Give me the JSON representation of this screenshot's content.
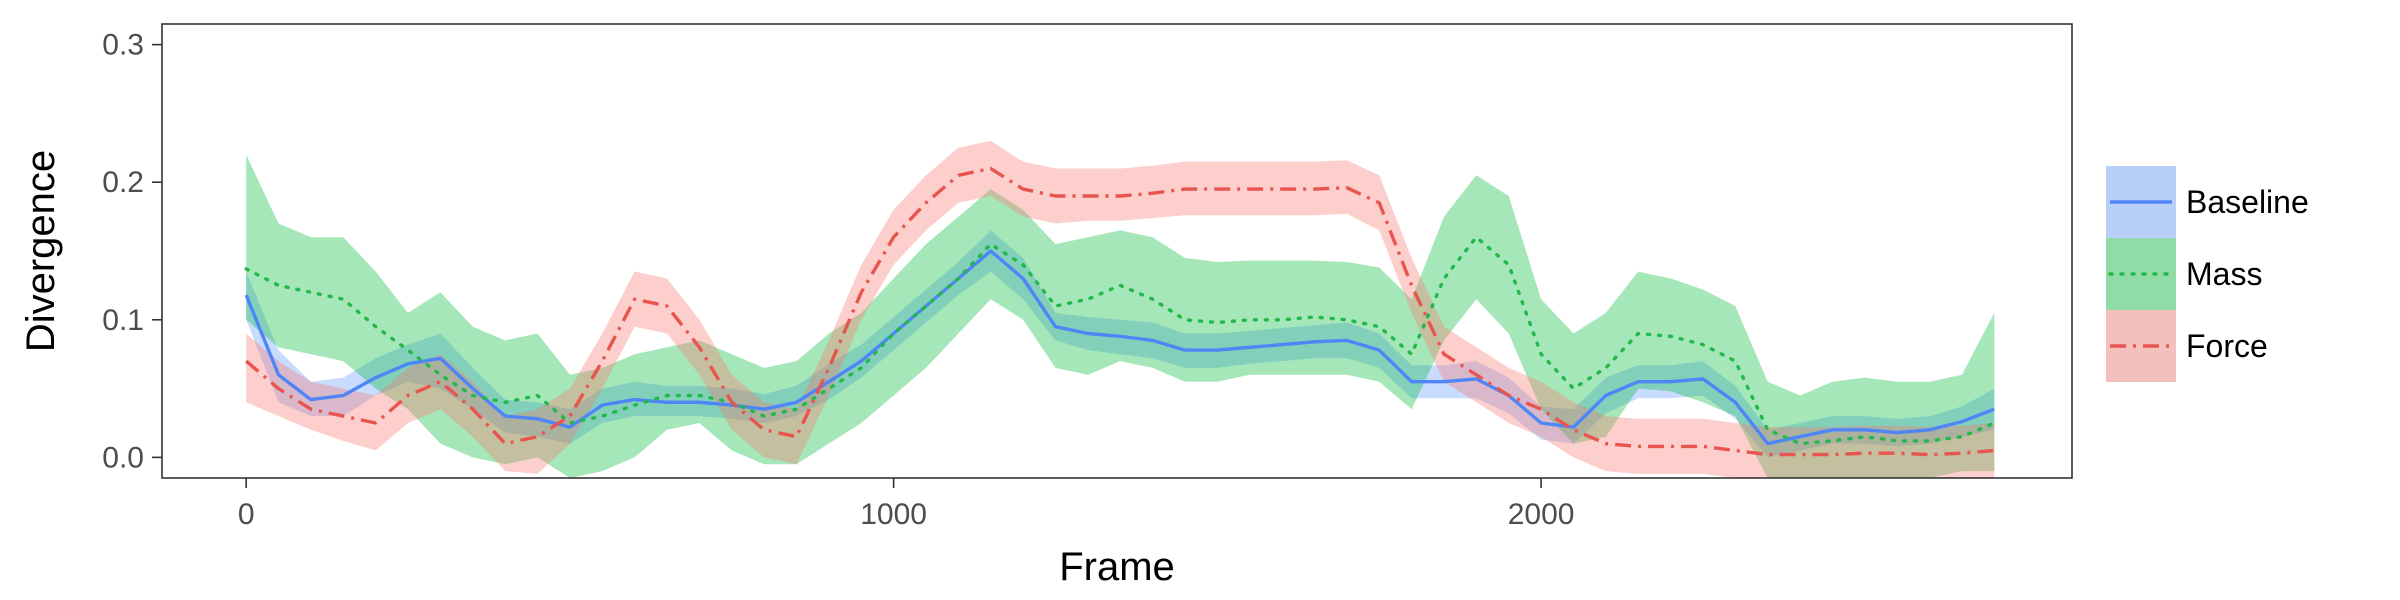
{
  "chart_data": {
    "type": "line",
    "xlabel": "Frame",
    "ylabel": "Divergence",
    "xlim": [
      -130,
      2820
    ],
    "ylim": [
      -0.015,
      0.315
    ],
    "xticks": [
      0,
      1000,
      2000
    ],
    "xtick_labels": [
      "0",
      "1000",
      "2000"
    ],
    "yticks": [
      0.0,
      0.1,
      0.2,
      0.3
    ],
    "ytick_labels": [
      "0.0",
      "0.1",
      "0.2",
      "0.3"
    ],
    "grid": false,
    "legend_position": "right",
    "series": [
      {
        "name": "Baseline",
        "color": "#619CFF",
        "line_color": "#4F86F7",
        "dash": "solid",
        "x": [
          0,
          50,
          100,
          150,
          200,
          250,
          300,
          350,
          400,
          450,
          500,
          550,
          600,
          650,
          700,
          750,
          800,
          850,
          900,
          950,
          1000,
          1050,
          1100,
          1150,
          1200,
          1250,
          1300,
          1350,
          1400,
          1450,
          1500,
          1550,
          1600,
          1650,
          1700,
          1750,
          1800,
          1850,
          1900,
          1950,
          2000,
          2050,
          2100,
          2150,
          2200,
          2250,
          2300,
          2350,
          2400,
          2450,
          2500,
          2550,
          2600,
          2650,
          2700
        ],
        "y": [
          0.118,
          0.06,
          0.042,
          0.045,
          0.058,
          0.068,
          0.072,
          0.05,
          0.03,
          0.028,
          0.022,
          0.038,
          0.042,
          0.04,
          0.04,
          0.038,
          0.035,
          0.04,
          0.055,
          0.07,
          0.09,
          0.11,
          0.13,
          0.15,
          0.13,
          0.095,
          0.09,
          0.088,
          0.085,
          0.078,
          0.078,
          0.08,
          0.082,
          0.084,
          0.085,
          0.078,
          0.055,
          0.055,
          0.057,
          0.045,
          0.025,
          0.022,
          0.045,
          0.055,
          0.055,
          0.057,
          0.04,
          0.01,
          0.015,
          0.02,
          0.02,
          0.018,
          0.02,
          0.026,
          0.035
        ],
        "lower": [
          0.1,
          0.04,
          0.03,
          0.03,
          0.045,
          0.055,
          0.05,
          0.035,
          0.018,
          0.015,
          0.01,
          0.025,
          0.03,
          0.03,
          0.03,
          0.028,
          0.025,
          0.03,
          0.042,
          0.058,
          0.078,
          0.098,
          0.118,
          0.135,
          0.115,
          0.085,
          0.078,
          0.075,
          0.072,
          0.065,
          0.065,
          0.068,
          0.07,
          0.072,
          0.072,
          0.065,
          0.043,
          0.043,
          0.043,
          0.032,
          0.013,
          0.01,
          0.032,
          0.043,
          0.043,
          0.045,
          0.028,
          0.0,
          0.005,
          0.01,
          0.01,
          0.008,
          0.01,
          0.015,
          0.02
        ],
        "upper": [
          0.135,
          0.078,
          0.055,
          0.058,
          0.072,
          0.082,
          0.09,
          0.065,
          0.042,
          0.04,
          0.035,
          0.05,
          0.055,
          0.052,
          0.052,
          0.05,
          0.046,
          0.052,
          0.068,
          0.082,
          0.102,
          0.122,
          0.142,
          0.165,
          0.145,
          0.105,
          0.102,
          0.1,
          0.098,
          0.09,
          0.09,
          0.092,
          0.094,
          0.096,
          0.098,
          0.09,
          0.067,
          0.067,
          0.07,
          0.058,
          0.037,
          0.035,
          0.058,
          0.067,
          0.067,
          0.07,
          0.052,
          0.02,
          0.025,
          0.03,
          0.03,
          0.028,
          0.03,
          0.037,
          0.05
        ]
      },
      {
        "name": "Mass",
        "color": "#00BA38",
        "line_color": "#22B84A",
        "dash": "dotted",
        "x": [
          0,
          50,
          100,
          150,
          200,
          250,
          300,
          350,
          400,
          450,
          500,
          550,
          600,
          650,
          700,
          750,
          800,
          850,
          900,
          950,
          1000,
          1050,
          1100,
          1150,
          1200,
          1250,
          1300,
          1350,
          1400,
          1450,
          1500,
          1550,
          1600,
          1650,
          1700,
          1750,
          1800,
          1850,
          1900,
          1950,
          2000,
          2050,
          2100,
          2150,
          2200,
          2250,
          2300,
          2350,
          2400,
          2450,
          2500,
          2550,
          2600,
          2650,
          2700
        ],
        "y": [
          0.137,
          0.125,
          0.12,
          0.115,
          0.095,
          0.078,
          0.06,
          0.045,
          0.04,
          0.045,
          0.025,
          0.03,
          0.038,
          0.045,
          0.045,
          0.04,
          0.03,
          0.035,
          0.05,
          0.065,
          0.09,
          0.11,
          0.13,
          0.155,
          0.14,
          0.11,
          0.115,
          0.125,
          0.115,
          0.1,
          0.098,
          0.1,
          0.1,
          0.102,
          0.1,
          0.095,
          0.075,
          0.13,
          0.16,
          0.14,
          0.075,
          0.05,
          0.065,
          0.09,
          0.088,
          0.082,
          0.07,
          0.02,
          0.01,
          0.012,
          0.015,
          0.012,
          0.012,
          0.015,
          0.025
        ],
        "lower": [
          0.1,
          0.08,
          0.075,
          0.07,
          0.05,
          0.035,
          0.01,
          0.0,
          -0.005,
          0.0,
          -0.015,
          -0.01,
          0.0,
          0.02,
          0.025,
          0.005,
          -0.005,
          -0.005,
          0.01,
          0.025,
          0.045,
          0.065,
          0.09,
          0.115,
          0.1,
          0.065,
          0.06,
          0.07,
          0.065,
          0.055,
          0.055,
          0.06,
          0.06,
          0.06,
          0.06,
          0.055,
          0.035,
          0.085,
          0.115,
          0.09,
          0.035,
          0.01,
          0.015,
          0.05,
          0.048,
          0.04,
          0.03,
          -0.015,
          -0.015,
          -0.015,
          -0.015,
          -0.015,
          -0.015,
          -0.01,
          -0.01
        ],
        "upper": [
          0.22,
          0.17,
          0.16,
          0.16,
          0.135,
          0.105,
          0.12,
          0.095,
          0.085,
          0.09,
          0.06,
          0.065,
          0.075,
          0.08,
          0.085,
          0.075,
          0.065,
          0.07,
          0.09,
          0.105,
          0.13,
          0.155,
          0.175,
          0.195,
          0.18,
          0.155,
          0.16,
          0.165,
          0.16,
          0.145,
          0.142,
          0.143,
          0.143,
          0.143,
          0.142,
          0.138,
          0.115,
          0.175,
          0.205,
          0.19,
          0.115,
          0.09,
          0.105,
          0.135,
          0.13,
          0.122,
          0.11,
          0.055,
          0.045,
          0.055,
          0.058,
          0.055,
          0.055,
          0.06,
          0.105
        ]
      },
      {
        "name": "Force",
        "color": "#F8766D",
        "line_color": "#E8554E",
        "dash": "dashdot",
        "x": [
          0,
          50,
          100,
          150,
          200,
          250,
          300,
          350,
          400,
          450,
          500,
          550,
          600,
          650,
          700,
          750,
          800,
          850,
          900,
          950,
          1000,
          1050,
          1100,
          1150,
          1200,
          1250,
          1300,
          1350,
          1400,
          1450,
          1500,
          1550,
          1600,
          1650,
          1700,
          1750,
          1800,
          1850,
          1900,
          1950,
          2000,
          2050,
          2100,
          2150,
          2200,
          2250,
          2300,
          2350,
          2400,
          2450,
          2500,
          2550,
          2600,
          2650,
          2700
        ],
        "y": [
          0.07,
          0.05,
          0.035,
          0.03,
          0.025,
          0.045,
          0.055,
          0.035,
          0.01,
          0.015,
          0.03,
          0.07,
          0.115,
          0.11,
          0.08,
          0.04,
          0.02,
          0.015,
          0.065,
          0.12,
          0.16,
          0.185,
          0.205,
          0.21,
          0.195,
          0.19,
          0.19,
          0.19,
          0.192,
          0.195,
          0.195,
          0.195,
          0.195,
          0.195,
          0.196,
          0.185,
          0.125,
          0.075,
          0.06,
          0.045,
          0.035,
          0.02,
          0.01,
          0.008,
          0.008,
          0.008,
          0.005,
          0.002,
          0.002,
          0.002,
          0.003,
          0.003,
          0.002,
          0.003,
          0.005
        ],
        "lower": [
          0.04,
          0.03,
          0.02,
          0.012,
          0.005,
          0.025,
          0.035,
          0.015,
          -0.01,
          -0.012,
          0.01,
          0.05,
          0.095,
          0.09,
          0.06,
          0.02,
          0.0,
          -0.005,
          0.045,
          0.1,
          0.14,
          0.165,
          0.185,
          0.19,
          0.175,
          0.17,
          0.172,
          0.172,
          0.174,
          0.176,
          0.176,
          0.176,
          0.176,
          0.176,
          0.177,
          0.165,
          0.105,
          0.055,
          0.04,
          0.025,
          0.015,
          0.0,
          -0.01,
          -0.012,
          -0.012,
          -0.012,
          -0.015,
          -0.015,
          -0.015,
          -0.015,
          -0.015,
          -0.015,
          -0.015,
          -0.015,
          -0.015
        ],
        "upper": [
          0.09,
          0.07,
          0.055,
          0.05,
          0.045,
          0.065,
          0.075,
          0.055,
          0.03,
          0.035,
          0.05,
          0.09,
          0.135,
          0.13,
          0.1,
          0.06,
          0.04,
          0.035,
          0.085,
          0.14,
          0.18,
          0.205,
          0.225,
          0.23,
          0.215,
          0.21,
          0.21,
          0.21,
          0.212,
          0.215,
          0.215,
          0.215,
          0.215,
          0.215,
          0.216,
          0.205,
          0.145,
          0.095,
          0.08,
          0.065,
          0.055,
          0.04,
          0.03,
          0.028,
          0.028,
          0.028,
          0.025,
          0.022,
          0.022,
          0.022,
          0.023,
          0.023,
          0.022,
          0.023,
          0.025
        ]
      }
    ]
  }
}
